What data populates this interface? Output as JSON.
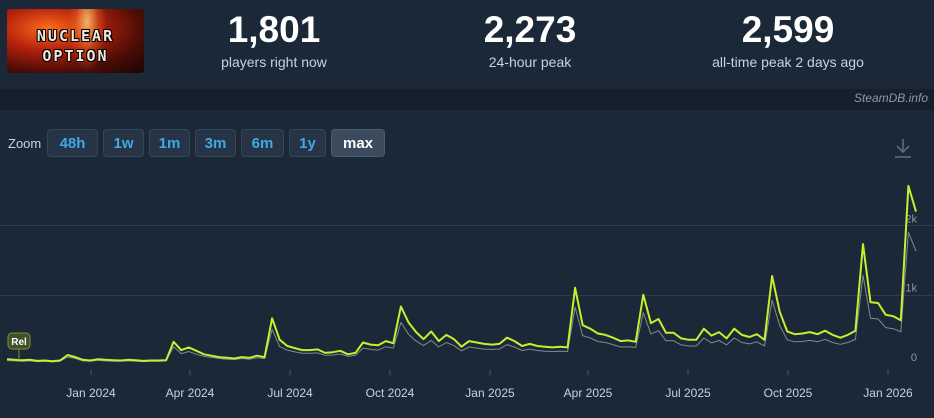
{
  "game": {
    "logo_line1": "NUCLEAR",
    "logo_line2": "OPTION"
  },
  "stats": [
    {
      "value": "1,801",
      "label": "players right now"
    },
    {
      "value": "2,273",
      "label": "24-hour peak"
    },
    {
      "value": "2,599",
      "label": "all-time peak 2 days ago"
    }
  ],
  "brand": "SteamDB.info",
  "zoom": {
    "label": "Zoom",
    "options": [
      "48h",
      "1w",
      "1m",
      "3m",
      "6m",
      "1y",
      "max"
    ],
    "selected": "max"
  },
  "chart_data": {
    "type": "line",
    "x_labels": [
      "Jan 2024",
      "Apr 2024",
      "Jul 2024",
      "Oct 2024",
      "Jan 2025",
      "Apr 2025",
      "Jul 2025",
      "Oct 2025",
      "Jan 2026"
    ],
    "y_ticks": [
      "0",
      "1k",
      "2k"
    ],
    "ylim": [
      0,
      2800
    ],
    "annotation": "Rel",
    "colors": {
      "players": "#c6ef2e",
      "secondary": "#7f8a94",
      "grid": "#2e3c4c"
    },
    "series": [
      {
        "values": [
          70,
          60,
          55,
          60,
          45,
          50,
          40,
          50,
          130,
          100,
          60,
          50,
          70,
          60,
          55,
          50,
          60,
          55,
          45,
          50,
          50,
          55,
          320,
          200,
          240,
          190,
          140,
          120,
          100,
          90,
          80,
          100,
          90,
          120,
          100,
          660,
          350,
          260,
          230,
          200,
          200,
          210,
          160,
          170,
          190,
          140,
          160,
          310,
          280,
          270,
          330,
          300,
          830,
          600,
          460,
          360,
          470,
          330,
          420,
          360,
          250,
          330,
          310,
          290,
          280,
          290,
          380,
          330,
          260,
          290,
          260,
          250,
          240,
          250,
          240,
          1100,
          560,
          510,
          440,
          420,
          380,
          330,
          340,
          320,
          1000,
          590,
          650,
          450,
          450,
          370,
          350,
          350,
          510,
          410,
          460,
          370,
          510,
          420,
          390,
          430,
          350,
          1270,
          760,
          470,
          430,
          440,
          460,
          430,
          480,
          420,
          380,
          420,
          480,
          1730,
          890,
          880,
          710,
          690,
          630,
          2570,
          2200
        ]
      },
      {
        "values": [
          50,
          45,
          40,
          45,
          35,
          40,
          30,
          40,
          100,
          80,
          45,
          40,
          55,
          45,
          40,
          40,
          45,
          40,
          35,
          40,
          40,
          45,
          250,
          150,
          180,
          140,
          110,
          95,
          80,
          70,
          65,
          80,
          70,
          90,
          80,
          500,
          250,
          200,
          175,
          155,
          155,
          160,
          125,
          130,
          145,
          110,
          125,
          230,
          210,
          200,
          250,
          230,
          600,
          430,
          330,
          265,
          340,
          245,
          310,
          265,
          190,
          245,
          230,
          215,
          210,
          215,
          280,
          245,
          195,
          215,
          195,
          185,
          180,
          185,
          180,
          820,
          410,
          375,
          325,
          310,
          280,
          245,
          250,
          240,
          740,
          435,
          480,
          335,
          335,
          275,
          260,
          260,
          375,
          305,
          340,
          275,
          375,
          310,
          290,
          320,
          260,
          920,
          560,
          350,
          320,
          325,
          340,
          320,
          355,
          310,
          285,
          310,
          355,
          1280,
          660,
          650,
          525,
          510,
          465,
          1900,
          1630
        ]
      }
    ]
  }
}
